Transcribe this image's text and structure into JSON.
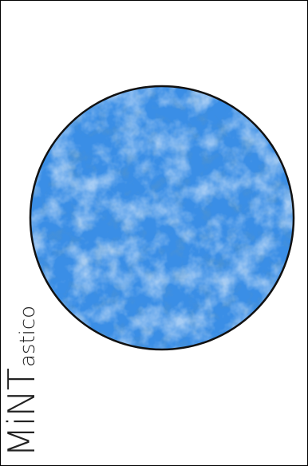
{
  "brand": {
    "main": "MiNT",
    "sub": "astico"
  },
  "colors": {
    "circle_fill": "#3a8ee6",
    "circle_outline": "#111111",
    "border": "#000000"
  }
}
